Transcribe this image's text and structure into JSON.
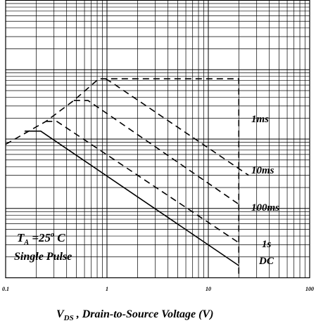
{
  "chart_data": {
    "type": "line",
    "log_x": true,
    "log_y": true,
    "grid": true,
    "xlabel": {
      "main": "V",
      "sub": "DS",
      "rest": " , Drain-to-Source Voltage (V)"
    },
    "annotation": {
      "t": "T",
      "sub": "A",
      "eq": " =25",
      "sup": "o",
      "unit": " C",
      "line2": "Single Pulse"
    },
    "xlim": [
      0.1,
      100
    ],
    "xticks": [
      0.1,
      1,
      10,
      100
    ],
    "ylim": [
      0.01,
      100
    ],
    "yticks": [
      0.01,
      0.1,
      1,
      10,
      100
    ],
    "series": [
      {
        "name": "1ms",
        "color": "#000000",
        "dash": true,
        "x": [
          0.1,
          0.25,
          0.47,
          0.83,
          20,
          20
        ],
        "values": [
          0.84,
          1.8,
          3.6,
          7.4,
          7.4,
          0.01
        ]
      },
      {
        "name": "10ms",
        "color": "#000000",
        "dash": true,
        "x": [
          0.97,
          1.14,
          25
        ],
        "values": [
          7.4,
          6.4,
          0.3
        ]
      },
      {
        "name": "100ms",
        "color": "#000000",
        "dash": true,
        "x": [
          0.47,
          0.65,
          20
        ],
        "values": [
          3.6,
          3.6,
          0.115
        ]
      },
      {
        "name": "1s",
        "color": "#000000",
        "dash": true,
        "x": [
          0.25,
          0.32,
          20
        ],
        "values": [
          1.8,
          1.8,
          0.032
        ]
      },
      {
        "name": "DC",
        "color": "#000000",
        "dash": false,
        "x": [
          0.154,
          0.222,
          20
        ],
        "values": [
          1.3,
          1.3,
          0.015
        ]
      }
    ]
  }
}
